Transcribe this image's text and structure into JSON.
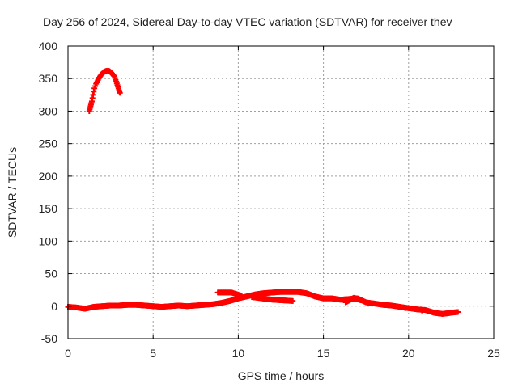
{
  "chart_data": {
    "type": "scatter",
    "title": "Day 256 of 2024, Sidereal Day-to-day VTEC variation (SDTVAR) for receiver thev",
    "xlabel": "GPS time / hours",
    "ylabel": "SDTVAR / TECUs",
    "xlim": [
      0,
      25
    ],
    "ylim": [
      -50,
      400
    ],
    "xticks": [
      "0",
      "5",
      "10",
      "15",
      "20",
      "25"
    ],
    "yticks": [
      "-50",
      "0",
      "50",
      "100",
      "150",
      "200",
      "250",
      "300",
      "350",
      "400"
    ],
    "grid": true,
    "marker": "+",
    "series": [
      {
        "name": "SDTVAR",
        "color": "#ff0000",
        "points": [
          [
            1.25,
            300
          ],
          [
            1.3,
            305
          ],
          [
            1.35,
            310
          ],
          [
            1.4,
            315
          ],
          [
            1.55,
            335
          ],
          [
            1.65,
            342
          ],
          [
            1.8,
            350
          ],
          [
            1.95,
            356
          ],
          [
            2.1,
            360
          ],
          [
            2.25,
            362
          ],
          [
            2.4,
            362
          ],
          [
            2.55,
            359
          ],
          [
            2.7,
            354
          ],
          [
            2.8,
            348
          ],
          [
            2.9,
            340
          ],
          [
            3.0,
            332
          ],
          [
            3.05,
            328
          ],
          [
            0.0,
            -1
          ],
          [
            0.5,
            -2
          ],
          [
            1.0,
            -4
          ],
          [
            1.5,
            -1
          ],
          [
            2.0,
            0
          ],
          [
            2.5,
            1
          ],
          [
            3.0,
            1
          ],
          [
            3.5,
            2
          ],
          [
            4.0,
            2
          ],
          [
            4.5,
            1
          ],
          [
            5.0,
            0
          ],
          [
            5.5,
            -1
          ],
          [
            6.0,
            0
          ],
          [
            6.5,
            1
          ],
          [
            7.0,
            0
          ],
          [
            7.5,
            1
          ],
          [
            8.0,
            2
          ],
          [
            8.5,
            3
          ],
          [
            9.0,
            5
          ],
          [
            9.5,
            8
          ],
          [
            10.0,
            12
          ],
          [
            10.5,
            15
          ],
          [
            11.0,
            18
          ],
          [
            11.5,
            20
          ],
          [
            12.0,
            21
          ],
          [
            12.5,
            22
          ],
          [
            13.0,
            22
          ],
          [
            13.5,
            22
          ],
          [
            14.0,
            20
          ],
          [
            14.5,
            15
          ],
          [
            15.0,
            12
          ],
          [
            15.5,
            12
          ],
          [
            16.0,
            10
          ],
          [
            16.5,
            11
          ],
          [
            17.0,
            12
          ],
          [
            17.5,
            6
          ],
          [
            18.0,
            4
          ],
          [
            18.5,
            2
          ],
          [
            19.0,
            1
          ],
          [
            19.5,
            -1
          ],
          [
            20.0,
            -3
          ],
          [
            20.5,
            -5
          ],
          [
            21.0,
            -6
          ],
          [
            21.5,
            -10
          ],
          [
            22.0,
            -12
          ],
          [
            22.5,
            -10
          ],
          [
            22.9,
            -9
          ],
          [
            8.8,
            21
          ],
          [
            9.0,
            21
          ],
          [
            9.3,
            21
          ],
          [
            9.6,
            21
          ],
          [
            10.2,
            16
          ],
          [
            10.8,
            14
          ],
          [
            11.4,
            12
          ],
          [
            12.0,
            10
          ],
          [
            12.6,
            9
          ],
          [
            13.2,
            8
          ],
          [
            16.3,
            6
          ],
          [
            16.8,
            13
          ],
          [
            17.2,
            9
          ],
          [
            19.8,
            -3
          ],
          [
            20.8,
            -8
          ]
        ]
      }
    ]
  }
}
